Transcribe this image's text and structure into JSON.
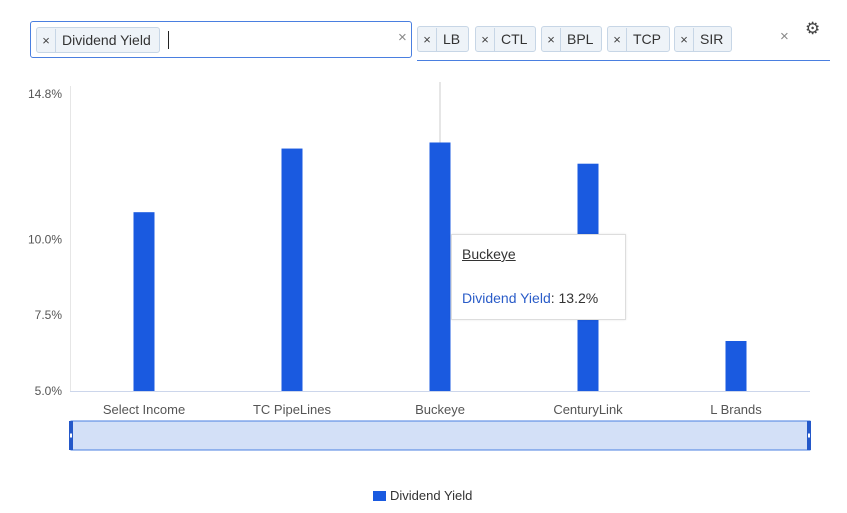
{
  "metric_selector": {
    "chips": [
      {
        "label": "Dividend Yield"
      }
    ],
    "remove_glyph": "×",
    "clear_glyph": "×"
  },
  "ticker_selector": {
    "chips": [
      {
        "label": "LB"
      },
      {
        "label": "CTL"
      },
      {
        "label": "BPL"
      },
      {
        "label": "TCP"
      },
      {
        "label": "SIR"
      }
    ],
    "remove_glyph": "×",
    "clear_glyph": "×"
  },
  "settings": {
    "icon": "gear-icon",
    "glyph": "⚙"
  },
  "tooltip": {
    "name": "Buckeye",
    "series_label": "Dividend Yield",
    "separator": ":",
    "value_text": "13.2%"
  },
  "legend": {
    "label": "Dividend Yield"
  },
  "colors": {
    "bar": "#1a5ae0",
    "navigator_fill": "#d3e0f7",
    "navigator_border": "#4a7fe0"
  },
  "chart_data": {
    "type": "bar",
    "categories": [
      "Select Income",
      "TC PipeLines",
      "Buckeye",
      "CenturyLink",
      "L Brands"
    ],
    "series": [
      {
        "name": "Dividend Yield",
        "values": [
          10.9,
          13.0,
          13.2,
          12.5,
          6.65
        ]
      }
    ],
    "y_ticks": [
      {
        "value": 5.0,
        "label": "5.0%"
      },
      {
        "value": 7.5,
        "label": "7.5%"
      },
      {
        "value": 10.0,
        "label": "10.0%"
      },
      {
        "value": 14.8,
        "label": "14.8%"
      }
    ],
    "ylim": [
      5.0,
      14.8
    ],
    "highlighted_category": "Buckeye",
    "grid": false,
    "legend_position": "bottom-center",
    "has_navigator": true
  }
}
